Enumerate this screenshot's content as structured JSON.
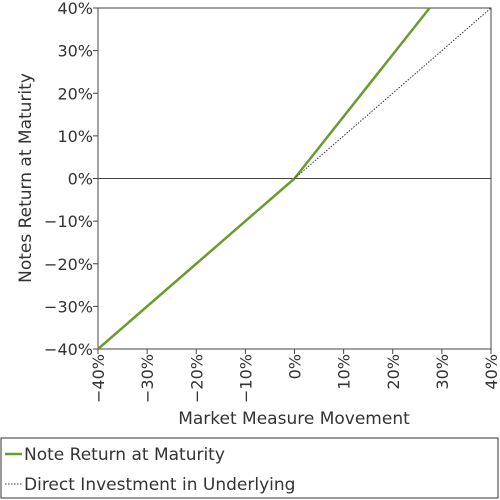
{
  "chart_data": {
    "type": "line",
    "xlabel": "Market Measure Movement",
    "ylabel": "Notes Return at Maturity",
    "xlim": [
      -40,
      40
    ],
    "ylim": [
      -40,
      40
    ],
    "x_ticks": [
      "−40%",
      "−30%",
      "−20%",
      "−10%",
      "0%",
      "10%",
      "20%",
      "30%",
      "40%"
    ],
    "y_ticks": [
      "40%",
      "30%",
      "20%",
      "10%",
      "0%",
      "−10%",
      "−20%",
      "−30%",
      "−40%"
    ],
    "grid": false,
    "legend_position": "bottom",
    "series": [
      {
        "name": "Note Return at Maturity",
        "color": "#6b9a2f",
        "style": "solid",
        "x": [
          -40,
          0,
          27.5
        ],
        "y": [
          -40,
          0,
          40
        ]
      },
      {
        "name": "Direct Investment in Underlying",
        "color": "#333333",
        "style": "dotted",
        "x": [
          0,
          40
        ],
        "y": [
          0,
          40
        ]
      }
    ]
  }
}
